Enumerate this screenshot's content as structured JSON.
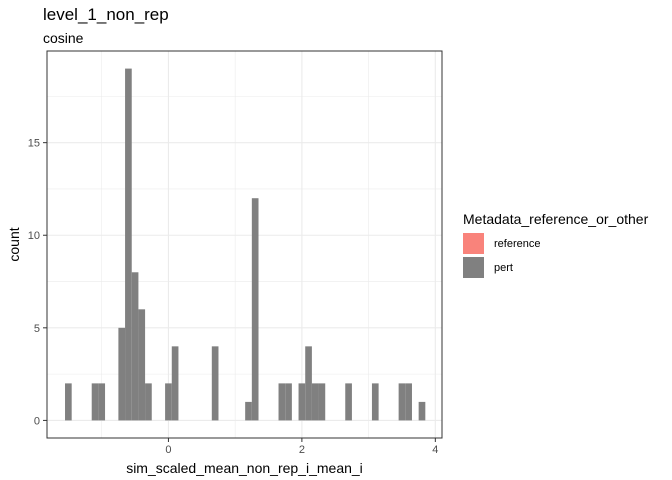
{
  "chart_data": {
    "type": "bar",
    "subtype": "histogram",
    "title": "level_1_non_rep",
    "subtitle": "cosine",
    "xlabel": "sim_scaled_mean_non_rep_i_mean_i",
    "ylabel": "count",
    "xlim": [
      -1.82,
      4.1
    ],
    "ylim": [
      -0.95,
      19.95
    ],
    "x_ticks": [
      0,
      2,
      4
    ],
    "y_ticks": [
      0,
      5,
      10,
      15
    ],
    "grid": true,
    "bin_width": 0.1,
    "legend": {
      "title": "Metadata_reference_or_other",
      "position": "right",
      "entries": [
        {
          "label": "reference",
          "color": "#F8766D"
        },
        {
          "label": "pert",
          "color": "#808080"
        }
      ]
    },
    "series": [
      {
        "name": "pert",
        "color": "#808080",
        "bins": [
          {
            "x": -1.5,
            "count": 2
          },
          {
            "x": -1.1,
            "count": 2
          },
          {
            "x": -1.0,
            "count": 2
          },
          {
            "x": -0.7,
            "count": 5
          },
          {
            "x": -0.6,
            "count": 19
          },
          {
            "x": -0.5,
            "count": 8
          },
          {
            "x": -0.4,
            "count": 6
          },
          {
            "x": -0.3,
            "count": 2
          },
          {
            "x": 0.0,
            "count": 2
          },
          {
            "x": 0.1,
            "count": 4
          },
          {
            "x": 0.7,
            "count": 4
          },
          {
            "x": 1.2,
            "count": 1
          },
          {
            "x": 1.3,
            "count": 12
          },
          {
            "x": 1.7,
            "count": 2
          },
          {
            "x": 1.8,
            "count": 2
          },
          {
            "x": 2.0,
            "count": 2
          },
          {
            "x": 2.1,
            "count": 4
          },
          {
            "x": 2.2,
            "count": 2
          },
          {
            "x": 2.3,
            "count": 2
          },
          {
            "x": 2.7,
            "count": 2
          },
          {
            "x": 3.1,
            "count": 2
          },
          {
            "x": 3.5,
            "count": 2
          },
          {
            "x": 3.6,
            "count": 2
          },
          {
            "x": 3.8,
            "count": 1
          }
        ]
      }
    ]
  }
}
